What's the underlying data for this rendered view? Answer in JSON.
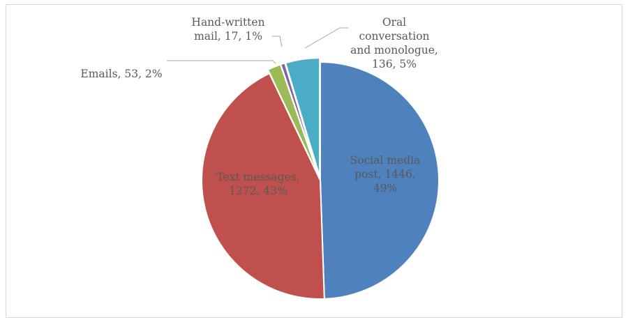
{
  "chart_data": {
    "type": "pie",
    "title": "",
    "slices": [
      {
        "name": "Social media post",
        "value": 1446,
        "percent": "49%",
        "color": "#4f81bd",
        "label_lines": [
          "Social media",
          "post, 1446,",
          "49%"
        ]
      },
      {
        "name": "Text messages",
        "value": 1272,
        "percent": "43%",
        "color": "#c0504d",
        "label_lines": [
          "Text messages,",
          "1272, 43%"
        ]
      },
      {
        "name": "Emails",
        "value": 53,
        "percent": "2%",
        "color": "#9bbb59",
        "label_lines": [
          "Emails, 53, 2%"
        ]
      },
      {
        "name": "Hand-written mail",
        "value": 17,
        "percent": "1%",
        "color": "#8064a2",
        "label_lines": [
          "Hand-written",
          "mail, 17, 1%"
        ]
      },
      {
        "name": "Oral conversation and monologue",
        "value": 136,
        "percent": "5%",
        "color": "#4bacc6",
        "label_lines": [
          "Oral",
          "conversation",
          "and monologue,",
          "136, 5%"
        ]
      }
    ],
    "legend": "none",
    "label_style": "category, value, percentage"
  },
  "colors": {
    "background": "#ffffff",
    "border": "#d9d9d9",
    "label_text": "#595959",
    "leader_line": "#a6a6a6",
    "slice_separator": "#ffffff"
  }
}
